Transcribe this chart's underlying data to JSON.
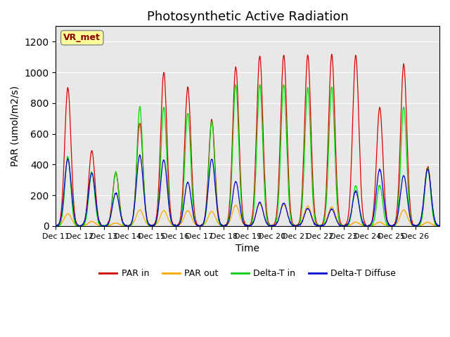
{
  "title": "Photosynthetic Active Radiation",
  "xlabel": "Time",
  "ylabel": "PAR (umol/m2/s)",
  "ylim": [
    0,
    1300
  ],
  "yticks": [
    0,
    200,
    400,
    600,
    800,
    1000,
    1200
  ],
  "xticklabels": [
    "Dec 11",
    "Dec 12",
    "Dec 13",
    "Dec 14",
    "Dec 15",
    "Dec 16",
    "Dec 17",
    "Dec 18",
    "Dec 19",
    "Dec 20",
    "Dec 21",
    "Dec 22",
    "Dec 23",
    "Dec 24",
    "Dec 25",
    "Dec 26"
  ],
  "xtick_positions": [
    0,
    1,
    2,
    3,
    4,
    5,
    6,
    7,
    8,
    9,
    10,
    11,
    12,
    13,
    14,
    15
  ],
  "legend_labels": [
    "PAR in",
    "PAR out",
    "Delta-T in",
    "Delta-T Diffuse"
  ],
  "legend_colors": [
    "#cc0000",
    "#ffaa00",
    "#00cc00",
    "#0000cc"
  ],
  "vr_met_box_color": "#ffff99",
  "vr_met_text_color": "#8b0000",
  "background_color": "#e8e8e8",
  "title_fontsize": 13,
  "axis_fontsize": 10,
  "colors": {
    "par_in": "#dd0000",
    "par_out": "#ffaa00",
    "delta_t_in": "#00dd00",
    "delta_t_diffuse": "#0000cc"
  },
  "peaks_par_in": [
    900,
    490,
    345,
    670,
    1000,
    905,
    690,
    1035,
    1105,
    1110,
    1110,
    1115,
    1110,
    770,
    1050,
    385
  ],
  "peaks_par_out": [
    80,
    30,
    20,
    105,
    100,
    100,
    95,
    135,
    145,
    140,
    130,
    125,
    25,
    25,
    105,
    25
  ],
  "peaks_green": [
    450,
    350,
    350,
    775,
    775,
    735,
    680,
    920,
    920,
    920,
    900,
    905,
    265,
    265,
    775,
    375
  ],
  "peaks_blue": [
    435,
    345,
    215,
    460,
    430,
    285,
    435,
    290,
    155,
    150,
    115,
    110,
    225,
    370,
    330,
    370
  ],
  "n_days": 16,
  "pts_per_day": 96
}
